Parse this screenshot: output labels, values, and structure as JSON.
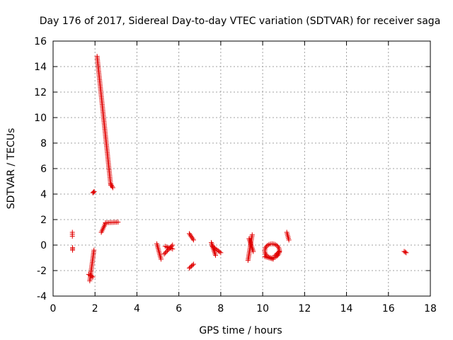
{
  "chart_data": {
    "type": "scatter",
    "title": "Day 176 of 2017, Sidereal Day-to-day VTEC variation (SDTVAR) for receiver saga",
    "xlabel": "GPS time / hours",
    "ylabel": "SDTVAR / TECUs",
    "xlim": [
      0,
      18
    ],
    "ylim": [
      -4,
      16
    ],
    "xticks": [
      "0",
      "2",
      "4",
      "6",
      "8",
      "10",
      "12",
      "14",
      "16",
      "18"
    ],
    "yticks": [
      "-4",
      "-2",
      "0",
      "2",
      "4",
      "6",
      "8",
      "10",
      "12",
      "14",
      "16"
    ],
    "grid": true,
    "marker": "+",
    "color": "#e00000",
    "segments": [
      {
        "x": [
          0.92,
          0.92
        ],
        "y": [
          1.0,
          0.7
        ]
      },
      {
        "x": [
          0.93,
          0.93
        ],
        "y": [
          -0.2,
          -0.4
        ]
      },
      {
        "x": [
          1.75,
          1.95
        ],
        "y": [
          -2.8,
          -0.4
        ]
      },
      {
        "x": [
          1.7,
          1.9
        ],
        "y": [
          -2.3,
          -2.5
        ]
      },
      {
        "x": [
          1.9,
          1.96
        ],
        "y": [
          4.1,
          4.2
        ]
      },
      {
        "x": [
          2.1,
          2.75
        ],
        "y": [
          14.8,
          4.7
        ]
      },
      {
        "x": [
          2.75,
          2.85
        ],
        "y": [
          4.8,
          4.5
        ]
      },
      {
        "x": [
          2.3,
          2.5
        ],
        "y": [
          1.0,
          1.7
        ]
      },
      {
        "x": [
          2.5,
          3.1
        ],
        "y": [
          1.75,
          1.8
        ]
      },
      {
        "x": [
          4.95,
          5.15
        ],
        "y": [
          0.1,
          -1.1
        ]
      },
      {
        "x": [
          5.3,
          5.7
        ],
        "y": [
          -0.7,
          0.0
        ]
      },
      {
        "x": [
          5.35,
          5.7
        ],
        "y": [
          -0.1,
          -0.3
        ]
      },
      {
        "x": [
          6.5,
          6.7
        ],
        "y": [
          0.9,
          0.4
        ]
      },
      {
        "x": [
          6.5,
          6.7
        ],
        "y": [
          -1.8,
          -1.5
        ]
      },
      {
        "x": [
          7.55,
          7.75
        ],
        "y": [
          0.2,
          -0.8
        ]
      },
      {
        "x": [
          7.6,
          8.0
        ],
        "y": [
          -0.1,
          -0.6
        ]
      },
      {
        "x": [
          9.3,
          9.5
        ],
        "y": [
          -1.2,
          0.8
        ]
      },
      {
        "x": [
          9.35,
          9.55
        ],
        "y": [
          0.5,
          -0.5
        ]
      },
      {
        "x": [
          10.1,
          10.5
        ],
        "y": [
          -0.9,
          -1.1
        ]
      },
      {
        "x": [
          10.6,
          10.8
        ],
        "y": [
          -0.8,
          -0.5
        ]
      },
      {
        "x": [
          11.15,
          11.25
        ],
        "y": [
          1.0,
          0.4
        ]
      },
      {
        "x": [
          16.75,
          16.85
        ],
        "y": [
          -0.5,
          -0.6
        ]
      }
    ],
    "rings": [
      {
        "cx": 10.45,
        "cy": -0.45,
        "rx": 0.35,
        "ry": 0.55,
        "n": 28
      }
    ]
  }
}
